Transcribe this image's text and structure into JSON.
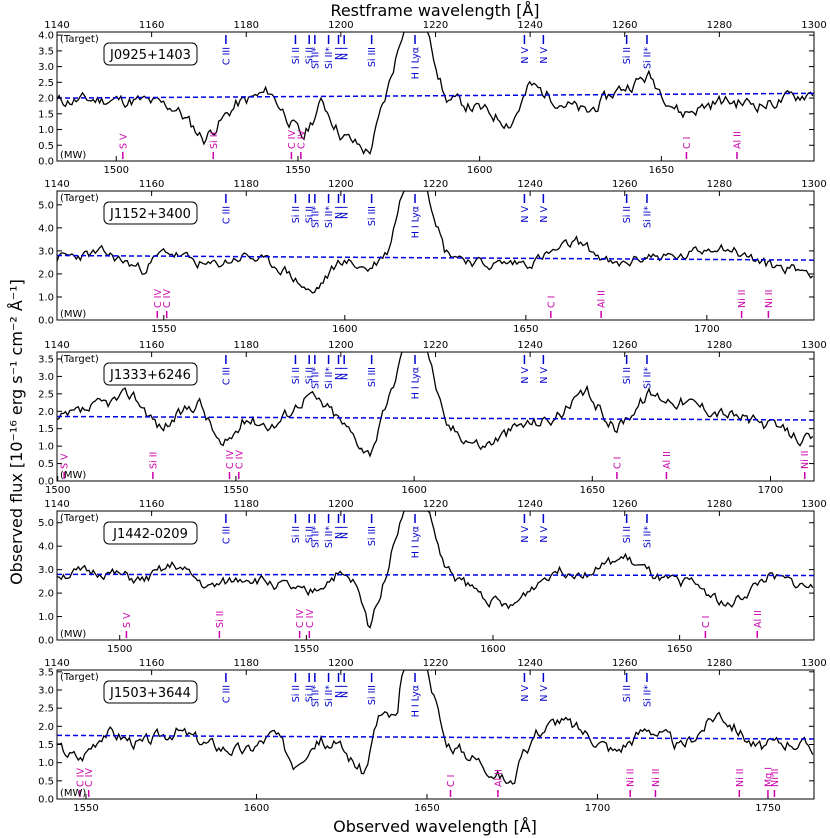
{
  "top_title": "Restframe wavelength [Å]",
  "bottom_title": "Observed wavelength [Å]",
  "y_title": "Observed flux [10⁻¹⁶ erg s⁻¹ cm⁻² Å⁻¹]",
  "colors": {
    "target": "#0000cc",
    "mw": "#cc00aa",
    "continuum": "#0000ee",
    "spectrum": "#000000"
  },
  "target_lines": [
    {
      "w": 1175.7,
      "label": "C III"
    },
    {
      "w": 1190.4,
      "label": "Si II"
    },
    {
      "w": 1193.3,
      "label": "Si II"
    },
    {
      "w": 1194.5,
      "label": "Si II*"
    },
    {
      "w": 1197.4,
      "label": "Si II*"
    },
    {
      "w": 1199.5,
      "label": "N I"
    },
    {
      "w": 1200.7,
      "label": "N I"
    },
    {
      "w": 1206.5,
      "label": "Si III"
    },
    {
      "w": 1215.67,
      "label": "H I Lyα"
    },
    {
      "w": 1238.8,
      "label": "N V"
    },
    {
      "w": 1242.8,
      "label": "N V"
    },
    {
      "w": 1260.4,
      "label": "Si II"
    },
    {
      "w": 1264.7,
      "label": "Si II*"
    }
  ],
  "chart_data": [
    {
      "type": "line",
      "title": "J0925+1403",
      "target_label": "(Target)",
      "mw_label": "(MW)",
      "rest_ticks": [
        1140,
        1160,
        1180,
        1200,
        1220,
        1240,
        1260,
        1280,
        1300
      ],
      "rest_range": [
        1140,
        1300
      ],
      "obs_range": [
        1483.7,
        1692.0
      ],
      "obs_ticks": [
        1500,
        1550,
        1600,
        1650
      ],
      "ylim": [
        0,
        4.1
      ],
      "yticks": [
        "0.0",
        "0.5",
        "1.0",
        "1.5",
        "2.0",
        "2.5",
        "3.0",
        "3.5",
        "4.0"
      ],
      "continuum": [
        2.0,
        2.15
      ],
      "mw_lines": [
        {
          "w": 1501.8,
          "label": "S V"
        },
        {
          "w": 1526.7,
          "label": "Si II"
        },
        {
          "w": 1548.2,
          "label": "C IV"
        },
        {
          "w": 1550.8,
          "label": "C IV"
        },
        {
          "w": 1656.9,
          "label": "C I"
        },
        {
          "w": 1670.8,
          "label": "Al II"
        }
      ],
      "spectrum": {
        "base": [
          [
            1140,
            1.9
          ],
          [
            1150,
            1.95
          ],
          [
            1158,
            1.9
          ],
          [
            1165,
            1.7
          ],
          [
            1171,
            0.7
          ],
          [
            1178,
            1.8
          ],
          [
            1185,
            2.2
          ],
          [
            1192,
            0.7
          ],
          [
            1196,
            1.9
          ],
          [
            1200,
            0.85
          ],
          [
            1206,
            0.25
          ],
          [
            1210,
            2.3
          ],
          [
            1213,
            4.1
          ],
          [
            1218.5,
            4.1
          ],
          [
            1222,
            2.0
          ],
          [
            1230,
            1.6
          ],
          [
            1236,
            1.2
          ],
          [
            1240,
            2.4
          ],
          [
            1245,
            2.0
          ],
          [
            1252,
            1.5
          ],
          [
            1258,
            2.2
          ],
          [
            1265,
            2.7
          ],
          [
            1272,
            1.5
          ],
          [
            1280,
            1.9
          ],
          [
            1290,
            1.8
          ],
          [
            1300,
            2.2
          ]
        ],
        "noise": 0.4,
        "seed": 11
      }
    },
    {
      "type": "line",
      "title": "J1152+3400",
      "target_label": "(Target)",
      "mw_label": "(MW)",
      "rest_ticks": [
        1140,
        1160,
        1180,
        1200,
        1220,
        1240,
        1260,
        1280,
        1300
      ],
      "rest_range": [
        1140,
        1300
      ],
      "obs_range": [
        1520.5,
        1729.6
      ],
      "obs_ticks": [
        1550,
        1600,
        1650,
        1700
      ],
      "ylim": [
        0,
        5.6
      ],
      "yticks": [
        "0.0",
        "1.0",
        "2.0",
        "3.0",
        "4.0",
        "5.0"
      ],
      "continuum": [
        2.8,
        2.6
      ],
      "mw_lines": [
        {
          "w": 1548.2,
          "label": "C IV"
        },
        {
          "w": 1550.8,
          "label": "C IV"
        },
        {
          "w": 1656.9,
          "label": "C I"
        },
        {
          "w": 1670.8,
          "label": "Al II"
        },
        {
          "w": 1709.6,
          "label": "Ni II"
        },
        {
          "w": 1717.0,
          "label": "Ni II"
        },
        {
          "w": 1741.6,
          "label": "Ni II"
        }
      ],
      "spectrum": {
        "base": [
          [
            1140,
            2.7
          ],
          [
            1150,
            2.9
          ],
          [
            1158,
            2.2
          ],
          [
            1163,
            3.0
          ],
          [
            1172,
            2.3
          ],
          [
            1180,
            2.8
          ],
          [
            1188,
            2.2
          ],
          [
            1194,
            1.1
          ],
          [
            1200,
            2.6
          ],
          [
            1206,
            2.2
          ],
          [
            1210,
            3.0
          ],
          [
            1213,
            5.6
          ],
          [
            1218.5,
            5.6
          ],
          [
            1222,
            3.0
          ],
          [
            1230,
            2.4
          ],
          [
            1240,
            2.5
          ],
          [
            1250,
            3.4
          ],
          [
            1258,
            2.3
          ],
          [
            1265,
            2.8
          ],
          [
            1272,
            2.7
          ],
          [
            1280,
            3.3
          ],
          [
            1290,
            2.4
          ],
          [
            1300,
            2.1
          ]
        ],
        "noise": 0.45,
        "seed": 23
      }
    },
    {
      "type": "line",
      "title": "J1333+6246",
      "target_label": "(Target)",
      "mw_label": "(MW)",
      "rest_ticks": [
        1140,
        1160,
        1180,
        1200,
        1220,
        1240,
        1260,
        1280,
        1300
      ],
      "rest_range": [
        1140,
        1300
      ],
      "obs_range": [
        1499.8,
        1712.2
      ],
      "obs_ticks": [
        1500,
        1550,
        1600,
        1650,
        1700
      ],
      "ylim": [
        0,
        3.7
      ],
      "yticks": [
        "0.0",
        "0.5",
        "1.0",
        "1.5",
        "2.0",
        "2.5",
        "3.0",
        "3.5"
      ],
      "continuum": [
        1.85,
        1.75
      ],
      "mw_lines": [
        {
          "w": 1501.8,
          "label": "S V"
        },
        {
          "w": 1526.7,
          "label": "Si II"
        },
        {
          "w": 1548.2,
          "label": "C IV"
        },
        {
          "w": 1550.8,
          "label": "C IV"
        },
        {
          "w": 1656.9,
          "label": "C I"
        },
        {
          "w": 1670.8,
          "label": "Al II"
        },
        {
          "w": 1709.6,
          "label": "Ni II"
        },
        {
          "w": 1741.6,
          "label": "Ni II"
        }
      ],
      "spectrum": {
        "base": [
          [
            1140,
            1.7
          ],
          [
            1150,
            2.2
          ],
          [
            1156,
            2.5
          ],
          [
            1162,
            1.5
          ],
          [
            1170,
            2.3
          ],
          [
            1175,
            0.9
          ],
          [
            1180,
            1.8
          ],
          [
            1186,
            1.6
          ],
          [
            1193,
            2.5
          ],
          [
            1198,
            2.0
          ],
          [
            1206,
            0.8
          ],
          [
            1210,
            2.2
          ],
          [
            1213,
            3.7
          ],
          [
            1218.5,
            3.7
          ],
          [
            1222,
            1.6
          ],
          [
            1230,
            1.0
          ],
          [
            1238,
            1.6
          ],
          [
            1245,
            1.8
          ],
          [
            1252,
            2.5
          ],
          [
            1258,
            1.5
          ],
          [
            1265,
            2.5
          ],
          [
            1272,
            2.3
          ],
          [
            1280,
            2.0
          ],
          [
            1290,
            1.6
          ],
          [
            1300,
            1.1
          ]
        ],
        "noise": 0.35,
        "seed": 37
      }
    },
    {
      "type": "line",
      "title": "J1442-0209",
      "target_label": "(Target)",
      "mw_label": "(MW)",
      "rest_ticks": [
        1140,
        1160,
        1180,
        1200,
        1220,
        1240,
        1260,
        1280,
        1300
      ],
      "rest_range": [
        1140,
        1300
      ],
      "obs_range": [
        1483.2,
        1686.0
      ],
      "obs_ticks": [
        1500,
        1550,
        1600,
        1650
      ],
      "ylim": [
        0,
        5.5
      ],
      "yticks": [
        "0.0",
        "1.0",
        "2.0",
        "3.0",
        "4.0",
        "5.0"
      ],
      "continuum": [
        2.8,
        2.75
      ],
      "mw_lines": [
        {
          "w": 1501.8,
          "label": "S V"
        },
        {
          "w": 1526.7,
          "label": "Si II"
        },
        {
          "w": 1548.2,
          "label": "C IV"
        },
        {
          "w": 1550.8,
          "label": "C IV"
        },
        {
          "w": 1656.9,
          "label": "C I"
        },
        {
          "w": 1670.8,
          "label": "Al II"
        }
      ],
      "spectrum": {
        "base": [
          [
            1140,
            2.8
          ],
          [
            1150,
            2.9
          ],
          [
            1158,
            2.5
          ],
          [
            1165,
            3.2
          ],
          [
            1172,
            2.2
          ],
          [
            1180,
            2.7
          ],
          [
            1188,
            2.3
          ],
          [
            1193,
            1.9
          ],
          [
            1199,
            2.8
          ],
          [
            1203,
            2.4
          ],
          [
            1206,
            0.5
          ],
          [
            1210,
            3.2
          ],
          [
            1213,
            5.5
          ],
          [
            1218.5,
            5.5
          ],
          [
            1222,
            3.0
          ],
          [
            1230,
            1.9
          ],
          [
            1236,
            1.3
          ],
          [
            1240,
            2.2
          ],
          [
            1245,
            3.0
          ],
          [
            1252,
            2.9
          ],
          [
            1260,
            3.5
          ],
          [
            1268,
            2.5
          ],
          [
            1275,
            2.4
          ],
          [
            1282,
            1.4
          ],
          [
            1290,
            2.7
          ],
          [
            1300,
            2.2
          ]
        ],
        "noise": 0.45,
        "seed": 51
      }
    },
    {
      "type": "line",
      "title": "J1503+3644",
      "target_label": "(Target)",
      "mw_label": "(MW)",
      "rest_ticks": [
        1140,
        1160,
        1180,
        1200,
        1220,
        1240,
        1260,
        1280,
        1300
      ],
      "rest_range": [
        1140,
        1300
      ],
      "obs_range": [
        1541.5,
        1763.5
      ],
      "obs_ticks": [
        1550,
        1600,
        1650,
        1700,
        1750
      ],
      "ylim": [
        0,
        3.55
      ],
      "yticks": [
        "0.0",
        "0.5",
        "1.0",
        "1.5",
        "2.0",
        "2.5",
        "3.0",
        "3.5"
      ],
      "continuum": [
        1.75,
        1.65
      ],
      "mw_lines": [
        {
          "w": 1548.2,
          "label": "C IV"
        },
        {
          "w": 1550.8,
          "label": "C IV"
        },
        {
          "w": 1656.9,
          "label": "C I"
        },
        {
          "w": 1670.8,
          "label": "Al II"
        },
        {
          "w": 1709.6,
          "label": "Ni II"
        },
        {
          "w": 1717.0,
          "label": "Ni II"
        },
        {
          "w": 1741.6,
          "label": "Ni II"
        },
        {
          "w": 1750.0,
          "label": "Mg I"
        },
        {
          "w": 1751.9,
          "label": "Ni II"
        }
      ],
      "spectrum": {
        "base": [
          [
            1140,
            1.4
          ],
          [
            1145,
            1.1
          ],
          [
            1150,
            1.9
          ],
          [
            1158,
            1.5
          ],
          [
            1165,
            1.9
          ],
          [
            1172,
            1.5
          ],
          [
            1180,
            1.3
          ],
          [
            1186,
            1.8
          ],
          [
            1190,
            1.0
          ],
          [
            1195,
            1.7
          ],
          [
            1200,
            1.4
          ],
          [
            1205,
            0.7
          ],
          [
            1208,
            2.3
          ],
          [
            1212,
            2.2
          ],
          [
            1213,
            3.55
          ],
          [
            1218.5,
            3.55
          ],
          [
            1222,
            1.6
          ],
          [
            1230,
            1.0
          ],
          [
            1236,
            0.4
          ],
          [
            1241,
            1.8
          ],
          [
            1246,
            2.2
          ],
          [
            1252,
            1.8
          ],
          [
            1258,
            1.3
          ],
          [
            1265,
            2.0
          ],
          [
            1272,
            1.4
          ],
          [
            1280,
            2.4
          ],
          [
            1288,
            1.4
          ],
          [
            1295,
            1.6
          ],
          [
            1300,
            1.4
          ]
        ],
        "noise": 0.35,
        "seed": 67
      }
    }
  ]
}
